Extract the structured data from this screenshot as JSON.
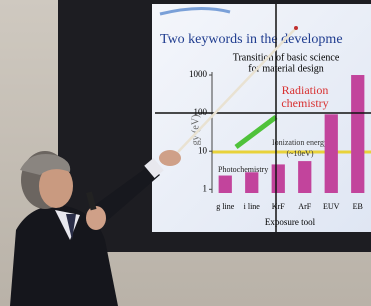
{
  "chart_data": {
    "type": "bar",
    "scale": "log",
    "title": "Two keywords in the developme",
    "subtitle_lines": [
      "Transition of basic science",
      "for material design"
    ],
    "y_label": "gy (eV)",
    "x_label": "Exposure tool",
    "categories": [
      "g line",
      "i line",
      "KrF",
      "ArF",
      "EUV",
      "EB"
    ],
    "values": [
      2.3,
      2.8,
      4.5,
      5.5,
      93,
      1000
    ],
    "color": "#c2449c",
    "ylim": [
      0.8,
      1200
    ],
    "yticks": [
      1,
      10,
      100,
      1000
    ],
    "annotation_radiation": [
      "Radiation",
      "chemistry"
    ],
    "annotation_ionization": [
      "Ionization energy",
      "(~10eV)"
    ],
    "annotation_photo": "Photochemistry"
  }
}
